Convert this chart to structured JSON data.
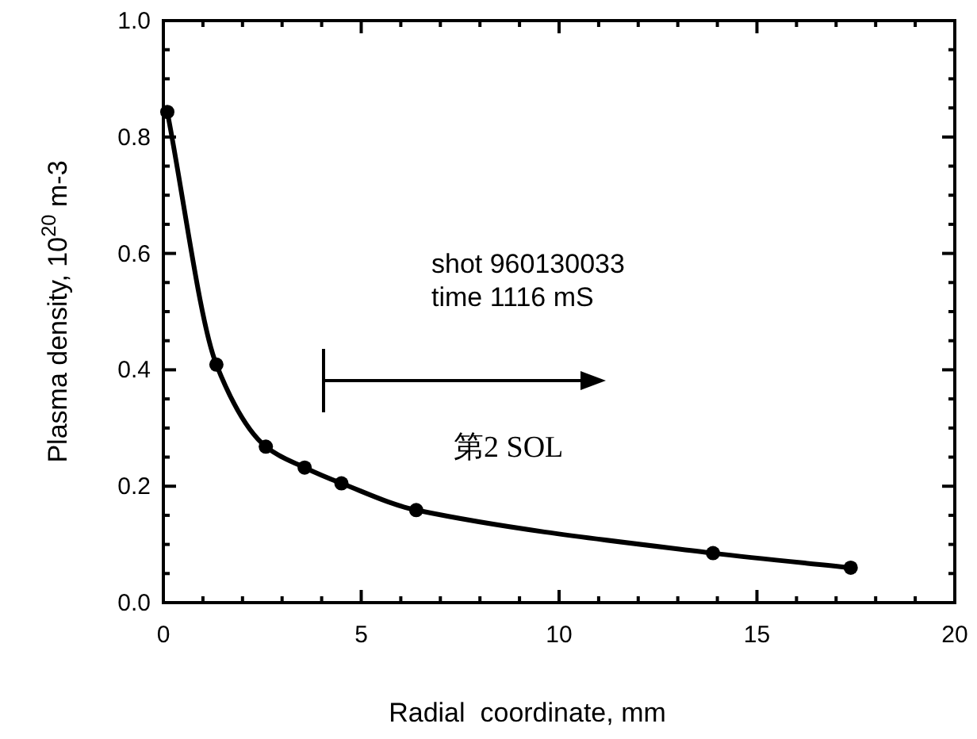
{
  "chart_data": {
    "type": "line",
    "xlabel": "Radial  coordinate, mm",
    "ylabel": "Plasma density, 10$^{20}$ m-3",
    "x": [
      0.1,
      1.34,
      2.59,
      3.57,
      4.5,
      6.39,
      13.89,
      17.37
    ],
    "series": [
      {
        "color": "#000000",
        "values": [
          0.843,
          0.409,
          0.268,
          0.232,
          0.205,
          0.159,
          0.085,
          0.06
        ]
      }
    ],
    "xlim": [
      0,
      20
    ],
    "ylim": [
      0,
      1
    ],
    "xticks": [
      0,
      5,
      10,
      15,
      20
    ],
    "yticks": [
      {
        "value": 0,
        "label": "0.0"
      },
      0.2,
      0.4,
      0.6,
      0.8,
      {
        "value": 1,
        "label": "1.0"
      }
    ],
    "marker": "circle",
    "line_style": "solid",
    "grid": false,
    "annotations": [
      "shot 960130033",
      "time 1116 mS",
      "第2 SOL"
    ]
  }
}
